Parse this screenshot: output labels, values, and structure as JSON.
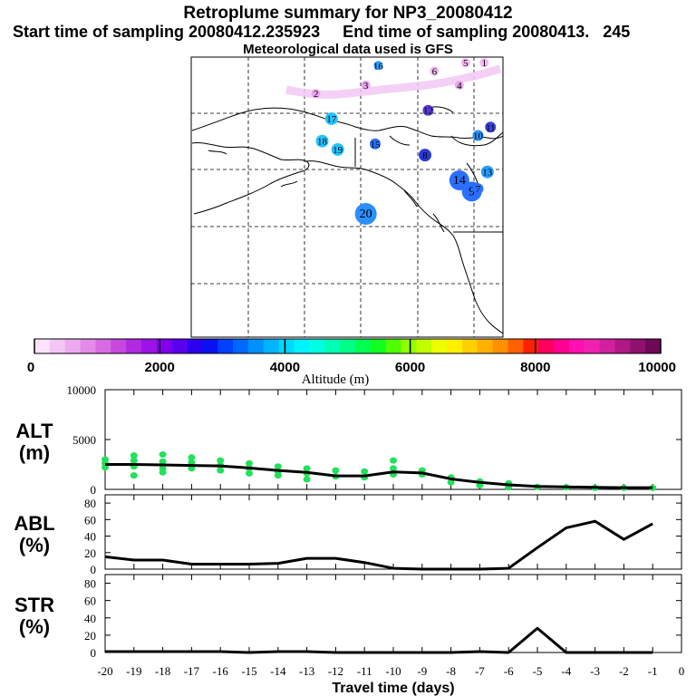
{
  "header": {
    "title": "Retroplume summary for NP3_20080412",
    "sampling": "Start time of sampling 20080412.235923     End time of sampling 20080413.   245",
    "meteo": "Meteorological data used is GFS"
  },
  "map": {
    "points": [
      {
        "label": "16",
        "lon": 0.6,
        "lat": 0.03,
        "r": 5,
        "color": "#2fa0ff"
      },
      {
        "label": "6",
        "lon": 0.78,
        "lat": 0.05,
        "r": 5,
        "color": "#f4b8f4"
      },
      {
        "label": "5",
        "lon": 0.88,
        "lat": 0.02,
        "r": 5,
        "color": "#f4b8f4"
      },
      {
        "label": "1",
        "lon": 0.94,
        "lat": 0.02,
        "r": 5,
        "color": "#f4b8f4"
      },
      {
        "label": "2",
        "lon": 0.4,
        "lat": 0.13,
        "r": 5,
        "color": "#e9a6ef"
      },
      {
        "label": "3",
        "lon": 0.56,
        "lat": 0.1,
        "r": 5,
        "color": "#e9a6ef"
      },
      {
        "label": "4",
        "lon": 0.86,
        "lat": 0.1,
        "r": 5,
        "color": "#e9a6ef"
      },
      {
        "label": "17",
        "lon": 0.45,
        "lat": 0.22,
        "r": 7,
        "color": "#23c4ff"
      },
      {
        "label": "12",
        "lon": 0.76,
        "lat": 0.19,
        "r": 6,
        "color": "#5a3ad2"
      },
      {
        "label": "11",
        "lon": 0.96,
        "lat": 0.25,
        "r": 6,
        "color": "#3a42d6"
      },
      {
        "label": "10",
        "lon": 0.92,
        "lat": 0.28,
        "r": 6,
        "color": "#2a8fff"
      },
      {
        "label": "18",
        "lon": 0.42,
        "lat": 0.3,
        "r": 7,
        "color": "#23c4ff"
      },
      {
        "label": "19",
        "lon": 0.47,
        "lat": 0.33,
        "r": 7,
        "color": "#23c4ff"
      },
      {
        "label": "15",
        "lon": 0.59,
        "lat": 0.31,
        "r": 6,
        "color": "#2a6fff"
      },
      {
        "label": "8",
        "lon": 0.75,
        "lat": 0.35,
        "r": 7,
        "color": "#2a3ad9"
      },
      {
        "label": "13",
        "lon": 0.95,
        "lat": 0.41,
        "r": 7,
        "color": "#2a9cff"
      },
      {
        "label": "14",
        "lon": 0.86,
        "lat": 0.44,
        "r": 11,
        "color": "#2a6fff"
      },
      {
        "label": "9",
        "lon": 0.9,
        "lat": 0.48,
        "r": 11,
        "color": "#2a6fff"
      },
      {
        "label": "7",
        "lon": 0.92,
        "lat": 0.47,
        "r": 6,
        "color": "#2a6fff"
      },
      {
        "label": "20",
        "lon": 0.56,
        "lat": 0.56,
        "r": 12,
        "color": "#2a8fff"
      }
    ]
  },
  "colorbar": {
    "colors": [
      "#fbe3fb",
      "#f4c6f4",
      "#eeaaf0",
      "#e58ae8",
      "#d96be2",
      "#c748df",
      "#b22ae0",
      "#9b13e6",
      "#8000ec",
      "#5a00ee",
      "#2a00ee",
      "#0a10f2",
      "#0040ff",
      "#0068ff",
      "#0090ff",
      "#00b4ff",
      "#00d8ff",
      "#00f2ff",
      "#00ffe2",
      "#00ffb4",
      "#00ff88",
      "#00ff50",
      "#10ff20",
      "#50ff00",
      "#90ff00",
      "#c0ff00",
      "#f0ff00",
      "#fff000",
      "#ffd000",
      "#ffb000",
      "#ff9000",
      "#ff6000",
      "#ff2000",
      "#ff0060",
      "#ff0090",
      "#ff10b0",
      "#f020b0",
      "#d020a0",
      "#b01888",
      "#901070",
      "#700858"
    ],
    "tick_labels": [
      "0",
      "2000",
      "4000",
      "6000",
      "8000",
      "10000"
    ],
    "label": "Altitude (m)"
  },
  "chart_data": [
    {
      "type": "line",
      "panel": "ALT",
      "ylabel": "ALT\n(m)",
      "ylabel_line1": "ALT",
      "ylabel_line2": "(m)",
      "ylim": [
        0,
        10000
      ],
      "yticks": [
        "10000",
        "5000",
        "0"
      ],
      "x": [
        -20,
        -19,
        -18,
        -17,
        -16,
        -15,
        -14,
        -13,
        -12,
        -11,
        -10,
        -9,
        -8,
        -7,
        -6,
        -5,
        -4,
        -3,
        -2,
        -1
      ],
      "values": [
        2500,
        2500,
        2450,
        2400,
        2350,
        2150,
        1900,
        1700,
        1350,
        1350,
        1750,
        1650,
        1050,
        700,
        450,
        300,
        250,
        200,
        170,
        170
      ],
      "scatter": [
        {
          "x": -20,
          "y": 3000
        },
        {
          "x": -20,
          "y": 2600
        },
        {
          "x": -20,
          "y": 2200
        },
        {
          "x": -19,
          "y": 3400
        },
        {
          "x": -19,
          "y": 2900
        },
        {
          "x": -19,
          "y": 2300
        },
        {
          "x": -19,
          "y": 1400
        },
        {
          "x": -18,
          "y": 3500
        },
        {
          "x": -18,
          "y": 2800
        },
        {
          "x": -18,
          "y": 2100
        },
        {
          "x": -18,
          "y": 1700
        },
        {
          "x": -17,
          "y": 3200
        },
        {
          "x": -17,
          "y": 2700
        },
        {
          "x": -17,
          "y": 2100
        },
        {
          "x": -16,
          "y": 2900
        },
        {
          "x": -16,
          "y": 2400
        },
        {
          "x": -16,
          "y": 1900
        },
        {
          "x": -15,
          "y": 2600
        },
        {
          "x": -15,
          "y": 2100
        },
        {
          "x": -15,
          "y": 1600
        },
        {
          "x": -14,
          "y": 2300
        },
        {
          "x": -14,
          "y": 1800
        },
        {
          "x": -14,
          "y": 1400
        },
        {
          "x": -13,
          "y": 2100
        },
        {
          "x": -13,
          "y": 1600
        },
        {
          "x": -13,
          "y": 1000
        },
        {
          "x": -12,
          "y": 1900
        },
        {
          "x": -12,
          "y": 1300
        },
        {
          "x": -11,
          "y": 1800
        },
        {
          "x": -11,
          "y": 1200
        },
        {
          "x": -10,
          "y": 2900
        },
        {
          "x": -10,
          "y": 2100
        },
        {
          "x": -10,
          "y": 1500
        },
        {
          "x": -9,
          "y": 1900
        },
        {
          "x": -9,
          "y": 1500
        },
        {
          "x": -8,
          "y": 1200
        },
        {
          "x": -8,
          "y": 700
        },
        {
          "x": -7,
          "y": 800
        },
        {
          "x": -7,
          "y": 400
        },
        {
          "x": -6,
          "y": 600
        },
        {
          "x": -6,
          "y": 200
        },
        {
          "x": -5,
          "y": 250
        },
        {
          "x": -4,
          "y": 200
        },
        {
          "x": -3,
          "y": 150
        },
        {
          "x": -2,
          "y": 150
        },
        {
          "x": -1,
          "y": 150
        }
      ]
    },
    {
      "type": "line",
      "panel": "ABL",
      "ylabel_line1": "ABL",
      "ylabel_line2": "(%)",
      "ylim": [
        0,
        90
      ],
      "yticks": [
        "80",
        "60",
        "40",
        "20",
        "0"
      ],
      "x": [
        -20,
        -19,
        -18,
        -17,
        -16,
        -15,
        -14,
        -13,
        -12,
        -11,
        -10,
        -9,
        -8,
        -7,
        -6,
        -5,
        -4,
        -3,
        -2,
        -1
      ],
      "values": [
        15,
        11,
        11,
        6,
        6,
        6,
        7,
        13,
        13,
        8,
        1,
        0,
        0,
        0,
        1,
        26,
        50,
        58,
        36,
        55
      ]
    },
    {
      "type": "line",
      "panel": "STR",
      "ylabel_line1": "STR",
      "ylabel_line2": "(%)",
      "ylim": [
        0,
        90
      ],
      "yticks": [
        "80",
        "60",
        "40",
        "20",
        "0"
      ],
      "x": [
        -20,
        -19,
        -18,
        -17,
        -16,
        -15,
        -14,
        -13,
        -12,
        -11,
        -10,
        -9,
        -8,
        -7,
        -6,
        -5,
        -4,
        -3,
        -2,
        -1
      ],
      "values": [
        1,
        1,
        1,
        1,
        1,
        0,
        1,
        1,
        0,
        0,
        0,
        0,
        0,
        1,
        0,
        28,
        0,
        0,
        0,
        0
      ]
    }
  ],
  "xaxis": {
    "tick_labels": [
      "-20",
      "-19",
      "-18",
      "-17",
      "-16",
      "-15",
      "-14",
      "-13",
      "-12",
      "-11",
      "-10",
      "-9",
      "-8",
      "-7",
      "-6",
      "-5",
      "-4",
      "-3",
      "-2",
      "-1",
      "0"
    ],
    "xlabel": "Travel time (days)",
    "xlim": [
      -20,
      0
    ]
  }
}
